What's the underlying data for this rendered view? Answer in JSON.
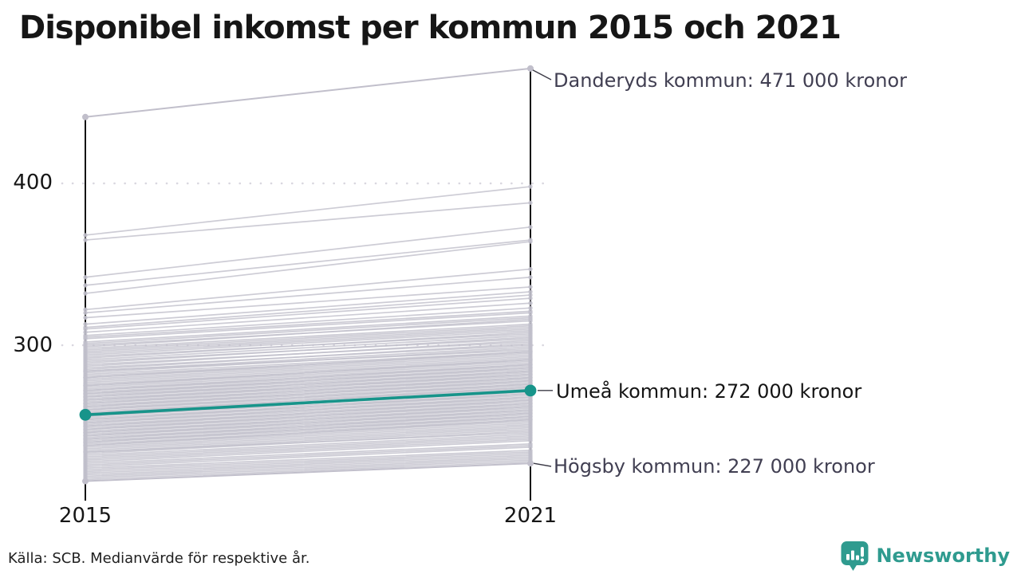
{
  "title": "Disponibel inkomst per kommun 2015 och 2021",
  "source": "Källa: SCB. Medianvärde för respektive år.",
  "branding": {
    "name": "Newsworthy",
    "color": "#2f9b8f"
  },
  "chart_data": {
    "type": "line",
    "subtype": "slope-chart",
    "title": "Disponibel inkomst per kommun 2015 och 2021",
    "x": [
      2015,
      2021
    ],
    "x_tick_labels": [
      "2015",
      "2021"
    ],
    "y_ticks": [
      400,
      300
    ],
    "y_tick_labels": [
      "400",
      "300"
    ],
    "y_unit": "tusen kronor",
    "ylim": [
      210,
      480
    ],
    "grid": "dotted horizontal gridlines at 300 and 400",
    "legend": "none",
    "colors": {
      "background_line": "#c1bfcb",
      "accent": "#17948a",
      "axis": "#111111",
      "grid": "#d9d7df",
      "connector": "#3c3b47"
    },
    "highlight_series": {
      "name": "Umeå kommun",
      "values": [
        257,
        272
      ],
      "label": "Umeå kommun: 272 000 kronor",
      "color": "#17948a"
    },
    "annotated_series": [
      {
        "name": "Danderyds kommun",
        "values": [
          441,
          471
        ],
        "label": "Danderyds kommun: 471 000 kronor"
      },
      {
        "name": "Högsby kommun",
        "values": [
          216,
          227
        ],
        "label": "Högsby kommun: 227 000 kronor"
      }
    ],
    "background_series": [
      [
        368,
        398
      ],
      [
        365,
        388
      ],
      [
        342,
        373
      ],
      [
        337,
        365
      ],
      [
        332,
        364
      ],
      [
        322,
        347
      ],
      [
        320,
        342
      ],
      [
        317,
        336
      ],
      [
        313,
        333
      ],
      [
        311,
        331
      ],
      [
        310,
        329
      ],
      [
        308,
        326
      ],
      [
        306,
        323
      ],
      [
        305,
        321
      ],
      [
        304,
        320
      ],
      [
        302,
        318
      ],
      [
        301,
        317
      ],
      [
        300,
        315
      ],
      [
        299,
        316
      ],
      [
        298,
        313
      ],
      [
        297,
        312
      ],
      [
        296,
        311
      ],
      [
        295,
        310
      ],
      [
        294,
        309
      ],
      [
        293,
        307
      ],
      [
        292,
        308
      ],
      [
        291,
        306
      ],
      [
        290,
        304
      ],
      [
        289,
        305
      ],
      [
        288,
        302
      ],
      [
        287,
        303
      ],
      [
        286,
        300
      ],
      [
        285,
        301
      ],
      [
        284,
        299
      ],
      [
        284,
        297
      ],
      [
        283,
        298
      ],
      [
        282,
        296
      ],
      [
        281,
        295
      ],
      [
        280,
        294
      ],
      [
        280,
        296
      ],
      [
        279,
        293
      ],
      [
        278,
        292
      ],
      [
        277,
        291
      ],
      [
        276,
        290
      ],
      [
        275,
        289
      ],
      [
        275,
        291
      ],
      [
        274,
        288
      ],
      [
        273,
        287
      ],
      [
        272,
        286
      ],
      [
        272,
        288
      ],
      [
        271,
        285
      ],
      [
        270,
        284
      ],
      [
        270,
        286
      ],
      [
        269,
        283
      ],
      [
        268,
        282
      ],
      [
        268,
        284
      ],
      [
        267,
        281
      ],
      [
        266,
        280
      ],
      [
        266,
        282
      ],
      [
        265,
        279
      ],
      [
        264,
        278
      ],
      [
        264,
        280
      ],
      [
        263,
        277
      ],
      [
        262,
        276
      ],
      [
        262,
        278
      ],
      [
        261,
        275
      ],
      [
        260,
        274
      ],
      [
        260,
        276
      ],
      [
        259,
        273
      ],
      [
        258,
        272
      ],
      [
        258,
        274
      ],
      [
        257,
        271
      ],
      [
        256,
        270
      ],
      [
        256,
        272
      ],
      [
        255,
        269
      ],
      [
        254,
        268
      ],
      [
        254,
        270
      ],
      [
        253,
        267
      ],
      [
        252,
        266
      ],
      [
        252,
        268
      ],
      [
        251,
        265
      ],
      [
        250,
        264
      ],
      [
        250,
        266
      ],
      [
        249,
        263
      ],
      [
        248,
        262
      ],
      [
        248,
        264
      ],
      [
        247,
        261
      ],
      [
        246,
        260
      ],
      [
        246,
        262
      ],
      [
        245,
        259
      ],
      [
        244,
        258
      ],
      [
        244,
        260
      ],
      [
        243,
        257
      ],
      [
        242,
        256
      ],
      [
        242,
        258
      ],
      [
        241,
        255
      ],
      [
        240,
        254
      ],
      [
        240,
        256
      ],
      [
        239,
        253
      ],
      [
        238,
        252
      ],
      [
        238,
        254
      ],
      [
        237,
        251
      ],
      [
        236,
        250
      ],
      [
        235,
        249
      ],
      [
        234,
        248
      ],
      [
        234,
        246
      ],
      [
        233,
        247
      ],
      [
        232,
        245
      ],
      [
        231,
        244
      ],
      [
        230,
        243
      ],
      [
        229,
        242
      ],
      [
        228,
        241
      ],
      [
        227,
        239
      ],
      [
        226,
        238
      ],
      [
        225,
        237
      ],
      [
        224,
        235
      ],
      [
        223,
        234
      ],
      [
        222,
        233
      ],
      [
        221,
        232
      ],
      [
        220,
        231
      ],
      [
        219,
        230
      ],
      [
        218,
        229
      ],
      [
        217,
        228
      ]
    ]
  }
}
